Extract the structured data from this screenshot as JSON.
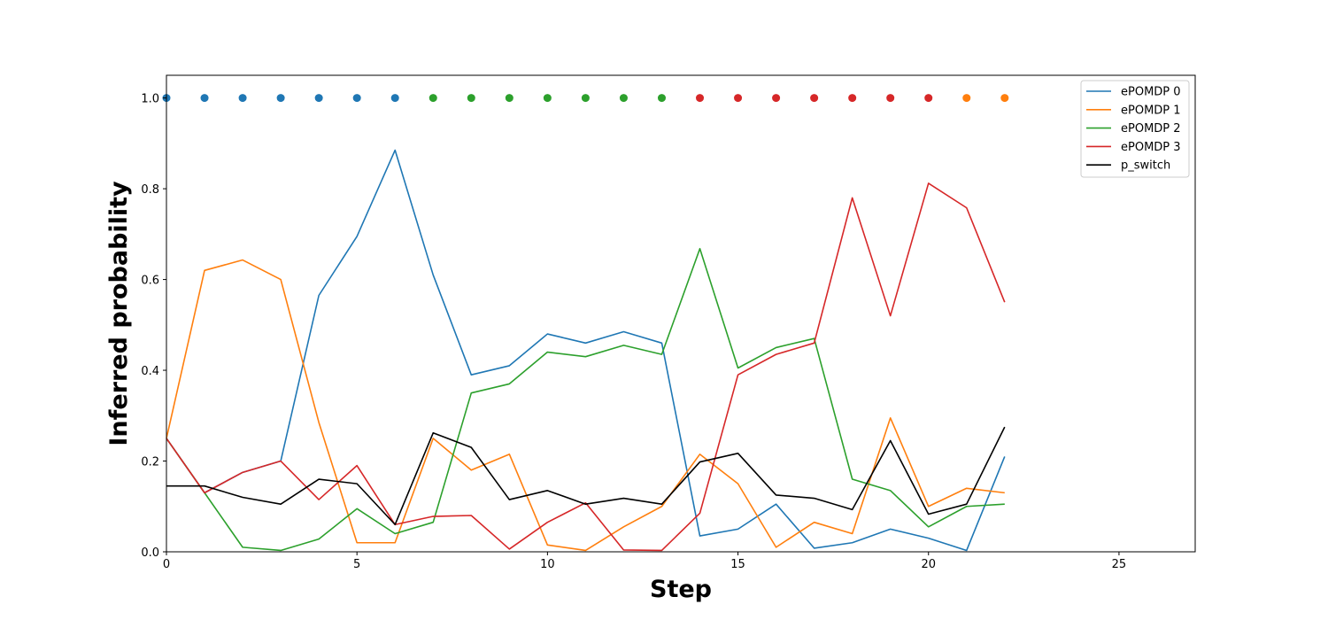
{
  "chart_data": {
    "type": "line",
    "xlabel": "Step",
    "ylabel": "Inferred probability",
    "xlim": [
      0,
      27
    ],
    "ylim": [
      0,
      1.05
    ],
    "xticks": [
      0,
      5,
      10,
      15,
      20,
      25
    ],
    "yticks": [
      0.0,
      0.2,
      0.4,
      0.6,
      0.8,
      1.0
    ],
    "xtick_labels": [
      "0",
      "5",
      "10",
      "15",
      "20",
      "25"
    ],
    "ytick_labels": [
      "0.0",
      "0.2",
      "0.4",
      "0.6",
      "0.8",
      "1.0"
    ],
    "grid": false,
    "legend_position": "top-right",
    "x": [
      0,
      1,
      2,
      3,
      4,
      5,
      6,
      7,
      8,
      9,
      10,
      11,
      12,
      13,
      14,
      15,
      16,
      17,
      18,
      19,
      20,
      21,
      22
    ],
    "series": [
      {
        "name": "ePOMDP 0",
        "color": "#1f77b4",
        "values": [
          0.25,
          0.13,
          0.175,
          0.2,
          0.565,
          0.695,
          0.885,
          0.61,
          0.39,
          0.41,
          0.48,
          0.46,
          0.485,
          0.46,
          0.035,
          0.05,
          0.105,
          0.008,
          0.02,
          0.05,
          0.03,
          0.003,
          0.21
        ]
      },
      {
        "name": "ePOMDP 1",
        "color": "#ff7f0e",
        "values": [
          0.25,
          0.62,
          0.643,
          0.6,
          0.285,
          0.02,
          0.02,
          0.25,
          0.18,
          0.215,
          0.015,
          0.003,
          0.055,
          0.1,
          0.215,
          0.15,
          0.01,
          0.065,
          0.04,
          0.295,
          0.1,
          0.14,
          0.13
        ]
      },
      {
        "name": "ePOMDP 2",
        "color": "#2ca02c",
        "values": [
          0.25,
          0.13,
          0.01,
          0.003,
          0.028,
          0.095,
          0.04,
          0.065,
          0.35,
          0.37,
          0.44,
          0.43,
          0.455,
          0.435,
          0.668,
          0.405,
          0.45,
          0.47,
          0.16,
          0.135,
          0.055,
          0.1,
          0.105
        ]
      },
      {
        "name": "ePOMDP 3",
        "color": "#d62728",
        "values": [
          0.25,
          0.13,
          0.175,
          0.2,
          0.115,
          0.19,
          0.06,
          0.078,
          0.08,
          0.006,
          0.065,
          0.108,
          0.004,
          0.003,
          0.085,
          0.39,
          0.435,
          0.46,
          0.78,
          0.52,
          0.812,
          0.758,
          0.55
        ]
      },
      {
        "name": "p_switch",
        "color": "#000000",
        "values": [
          0.145,
          0.145,
          0.12,
          0.105,
          0.16,
          0.15,
          0.06,
          0.262,
          0.23,
          0.115,
          0.135,
          0.105,
          0.118,
          0.105,
          0.198,
          0.217,
          0.125,
          0.118,
          0.093,
          0.245,
          0.083,
          0.105,
          0.275
        ]
      }
    ],
    "markers": {
      "y": 1.0,
      "x": [
        0,
        1,
        2,
        3,
        4,
        5,
        6,
        7,
        8,
        9,
        10,
        11,
        12,
        13,
        14,
        15,
        16,
        17,
        18,
        19,
        20,
        21,
        22
      ],
      "colors": [
        "#1f77b4",
        "#1f77b4",
        "#1f77b4",
        "#1f77b4",
        "#1f77b4",
        "#1f77b4",
        "#1f77b4",
        "#2ca02c",
        "#2ca02c",
        "#2ca02c",
        "#2ca02c",
        "#2ca02c",
        "#2ca02c",
        "#2ca02c",
        "#d62728",
        "#d62728",
        "#d62728",
        "#d62728",
        "#d62728",
        "#d62728",
        "#d62728",
        "#ff7f0e",
        "#ff7f0e"
      ]
    }
  }
}
